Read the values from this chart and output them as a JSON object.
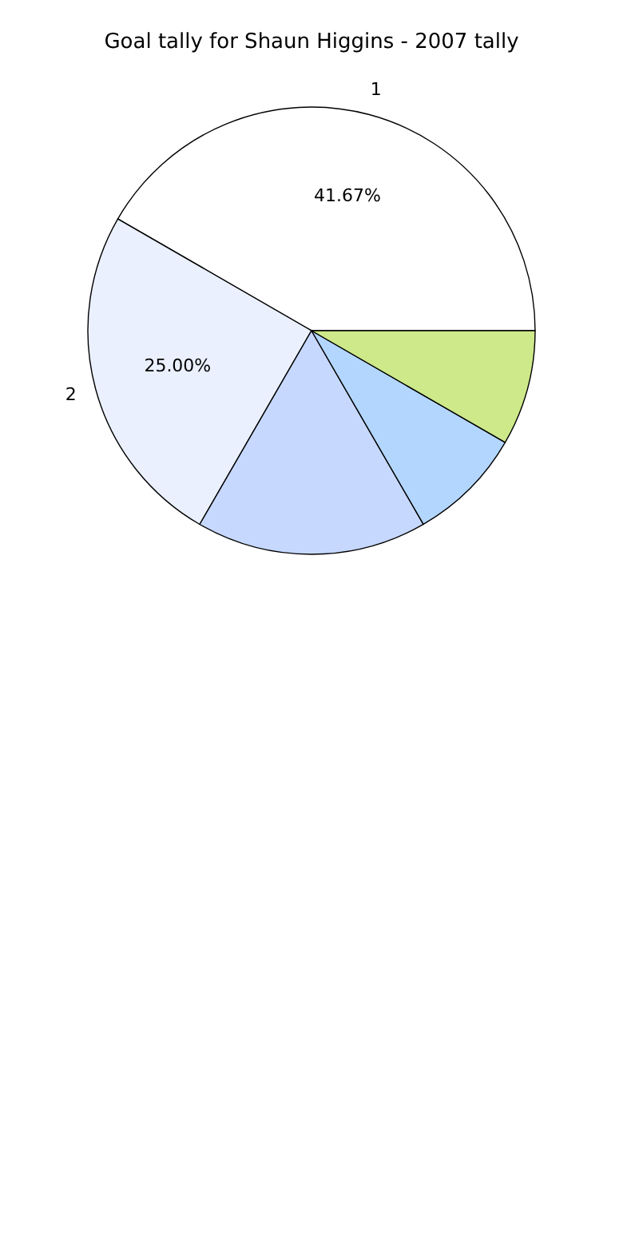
{
  "chart_data": {
    "type": "pie",
    "title": "Goal tally for Shaun Higgins - 2007 tally",
    "categories": [
      "1",
      "2",
      null,
      null,
      null
    ],
    "values": [
      41.67,
      25.0,
      16.67,
      8.33,
      8.33
    ],
    "colors": [
      "#ffffff",
      "#eaf0fe",
      "#c6d8fe",
      "#b3d6fe",
      "#cde98a"
    ],
    "value_labels": [
      "41.67%",
      "25.00%",
      null,
      null,
      null
    ]
  }
}
